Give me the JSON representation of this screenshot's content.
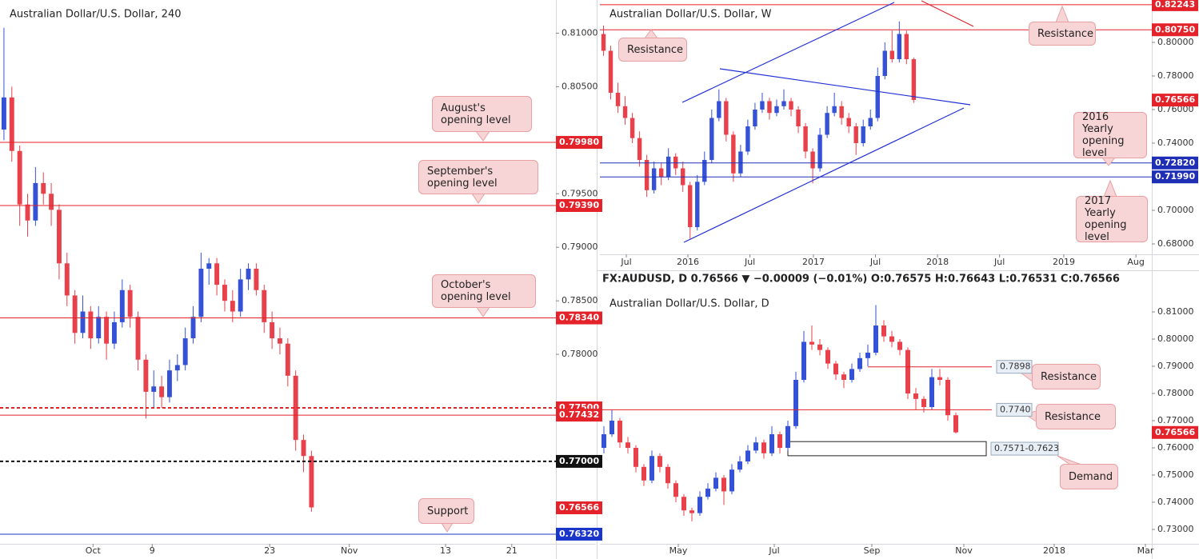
{
  "chart_data": [
    {
      "type": "candlestick",
      "title": "Australian Dollar/U.S. Dollar, 240",
      "up_color": "#3552d6",
      "down_color": "#e8414b",
      "xlim": [
        -0.5,
        70
      ],
      "ylim": [
        0.7623,
        0.8131
      ],
      "xticks": [
        {
          "value": 11.3,
          "label": "Oct"
        },
        {
          "value": 18.8,
          "label": "9"
        },
        {
          "value": 33.7,
          "label": "23"
        },
        {
          "value": 43.8,
          "label": "Nov"
        },
        {
          "value": 56,
          "label": "13"
        },
        {
          "value": 64.4,
          "label": "21"
        }
      ],
      "yticks": [
        {
          "value": 0.81,
          "label": "0.81000"
        },
        {
          "value": 0.805,
          "label": "0.80500"
        },
        {
          "value": 0.795,
          "label": "0.79500"
        },
        {
          "value": 0.79,
          "label": "0.79000"
        },
        {
          "value": 0.785,
          "label": "0.78500"
        },
        {
          "value": 0.78,
          "label": "0.78000"
        }
      ],
      "levels": [
        {
          "value": 0.7998,
          "label": "0.79980",
          "color": "#e3222a",
          "style": "solid"
        },
        {
          "value": 0.7939,
          "label": "0.79390",
          "color": "#e3222a",
          "style": "solid"
        },
        {
          "value": 0.7834,
          "label": "0.78340",
          "color": "#e3222a",
          "style": "solid"
        },
        {
          "value": 0.775,
          "label": "0.77500",
          "color": "#e3222a",
          "style": "dashed"
        },
        {
          "value": 0.77432,
          "label": "0.77432",
          "color": "#e3222a",
          "style": "solid"
        },
        {
          "value": 0.77,
          "label": "0.77000",
          "color": "#111111",
          "style": "dashed"
        },
        {
          "value": 0.76566,
          "label": "0.76566",
          "color": "#e3222a",
          "style": "none"
        },
        {
          "value": 0.7632,
          "label": "0.76320",
          "color": "#1a35c9",
          "style": "solid"
        }
      ],
      "annotations": [
        "August's opening level",
        "September's opening level",
        "October's opening level",
        "Support"
      ],
      "ohlc": [
        [
          0.801,
          0.8105,
          0.8,
          0.804
        ],
        [
          0.804,
          0.805,
          0.798,
          0.799
        ],
        [
          0.799,
          0.7995,
          0.792,
          0.794
        ],
        [
          0.794,
          0.795,
          0.791,
          0.7925
        ],
        [
          0.7925,
          0.7975,
          0.792,
          0.796
        ],
        [
          0.796,
          0.797,
          0.794,
          0.795
        ],
        [
          0.795,
          0.796,
          0.792,
          0.7935
        ],
        [
          0.7935,
          0.794,
          0.787,
          0.7885
        ],
        [
          0.7885,
          0.7895,
          0.7845,
          0.7855
        ],
        [
          0.7855,
          0.786,
          0.781,
          0.782
        ],
        [
          0.782,
          0.7855,
          0.7815,
          0.784
        ],
        [
          0.784,
          0.7845,
          0.7805,
          0.7815
        ],
        [
          0.7815,
          0.7845,
          0.781,
          0.7835
        ],
        [
          0.7835,
          0.784,
          0.7795,
          0.781
        ],
        [
          0.781,
          0.784,
          0.7805,
          0.783
        ],
        [
          0.783,
          0.787,
          0.7825,
          0.786
        ],
        [
          0.786,
          0.7865,
          0.7825,
          0.7835
        ],
        [
          0.7835,
          0.784,
          0.7785,
          0.7795
        ],
        [
          0.7795,
          0.78,
          0.774,
          0.7765
        ],
        [
          0.7765,
          0.7785,
          0.775,
          0.777
        ],
        [
          0.777,
          0.778,
          0.775,
          0.776
        ],
        [
          0.776,
          0.7795,
          0.7755,
          0.7785
        ],
        [
          0.7785,
          0.78,
          0.7775,
          0.779
        ],
        [
          0.779,
          0.7825,
          0.7785,
          0.7815
        ],
        [
          0.7815,
          0.7845,
          0.781,
          0.7835
        ],
        [
          0.7835,
          0.7895,
          0.783,
          0.788
        ],
        [
          0.788,
          0.789,
          0.7865,
          0.7885
        ],
        [
          0.7885,
          0.789,
          0.7855,
          0.7865
        ],
        [
          0.7865,
          0.787,
          0.784,
          0.785
        ],
        [
          0.785,
          0.786,
          0.783,
          0.784
        ],
        [
          0.784,
          0.788,
          0.7835,
          0.787
        ],
        [
          0.787,
          0.7885,
          0.786,
          0.788
        ],
        [
          0.788,
          0.7885,
          0.7855,
          0.786
        ],
        [
          0.786,
          0.7865,
          0.782,
          0.783
        ],
        [
          0.783,
          0.784,
          0.7805,
          0.7815
        ],
        [
          0.7815,
          0.7825,
          0.78,
          0.781
        ],
        [
          0.781,
          0.7815,
          0.777,
          0.778
        ],
        [
          0.778,
          0.7785,
          0.771,
          0.772
        ],
        [
          0.772,
          0.7725,
          0.769,
          0.7705
        ],
        [
          0.7705,
          0.771,
          0.7653,
          0.7657
        ]
      ]
    },
    {
      "type": "candlestick",
      "title": "Australian Dollar/U.S. Dollar, W",
      "up_color": "#3552d6",
      "down_color": "#e8414b",
      "xlim": [
        -0.5,
        76
      ],
      "ylim": [
        0.67381,
        0.82524
      ],
      "xticks": [
        {
          "value": 3.16,
          "label": "Jul"
        },
        {
          "value": 11.7,
          "label": "2016"
        },
        {
          "value": 20.3,
          "label": "Jul"
        },
        {
          "value": 29.1,
          "label": "2017"
        },
        {
          "value": 37.7,
          "label": "Jul"
        },
        {
          "value": 46.3,
          "label": "2018"
        },
        {
          "value": 54.9,
          "label": "Jul"
        },
        {
          "value": 63.8,
          "label": "2019"
        },
        {
          "value": 73.8,
          "label": "Aug"
        }
      ],
      "yticks": [
        {
          "value": 0.8,
          "label": "0.80000"
        },
        {
          "value": 0.78,
          "label": "0.78000"
        },
        {
          "value": 0.76,
          "label": "0.76000"
        },
        {
          "value": 0.74,
          "label": "0.74000"
        },
        {
          "value": 0.7,
          "label": "0.70000"
        },
        {
          "value": 0.68,
          "label": "0.68000"
        }
      ],
      "levels": [
        {
          "value": 0.82243,
          "label": "0.82243",
          "color": "#e3222a",
          "style": "solid"
        },
        {
          "value": 0.8075,
          "label": "0.80750",
          "color": "#e3222a",
          "style": "solid"
        },
        {
          "value": 0.76566,
          "label": "0.76566",
          "color": "#e3222a",
          "style": "none"
        },
        {
          "value": 0.7282,
          "label": "0.72820",
          "color": "#1f2fb5",
          "style": "solid"
        },
        {
          "value": 0.7199,
          "label": "0.71990",
          "color": "#1f2fb5",
          "style": "solid"
        }
      ],
      "annotations": [
        "Resistance",
        "Resistance",
        "2016 Yearly opening level",
        "2017 Yearly opening level"
      ],
      "ohlc": [
        [
          0.805,
          0.81,
          0.792,
          0.795
        ],
        [
          0.795,
          0.798,
          0.766,
          0.77
        ],
        [
          0.77,
          0.776,
          0.758,
          0.762
        ],
        [
          0.762,
          0.768,
          0.751,
          0.755
        ],
        [
          0.755,
          0.758,
          0.74,
          0.743
        ],
        [
          0.743,
          0.747,
          0.726,
          0.73
        ],
        [
          0.73,
          0.733,
          0.708,
          0.712
        ],
        [
          0.712,
          0.729,
          0.71,
          0.725
        ],
        [
          0.725,
          0.728,
          0.715,
          0.72
        ],
        [
          0.72,
          0.737,
          0.718,
          0.732
        ],
        [
          0.732,
          0.734,
          0.721,
          0.725
        ],
        [
          0.725,
          0.729,
          0.711,
          0.715
        ],
        [
          0.715,
          0.717,
          0.683,
          0.69
        ],
        [
          0.69,
          0.721,
          0.688,
          0.717
        ],
        [
          0.717,
          0.735,
          0.715,
          0.73
        ],
        [
          0.73,
          0.76,
          0.728,
          0.755
        ],
        [
          0.755,
          0.772,
          0.753,
          0.765
        ],
        [
          0.765,
          0.767,
          0.741,
          0.745
        ],
        [
          0.745,
          0.747,
          0.717,
          0.722
        ],
        [
          0.722,
          0.739,
          0.72,
          0.735
        ],
        [
          0.735,
          0.754,
          0.733,
          0.75
        ],
        [
          0.75,
          0.764,
          0.748,
          0.76
        ],
        [
          0.76,
          0.77,
          0.758,
          0.765
        ],
        [
          0.765,
          0.767,
          0.754,
          0.758
        ],
        [
          0.758,
          0.766,
          0.756,
          0.762
        ],
        [
          0.762,
          0.772,
          0.76,
          0.765
        ],
        [
          0.765,
          0.767,
          0.756,
          0.76
        ],
        [
          0.76,
          0.762,
          0.746,
          0.75
        ],
        [
          0.75,
          0.752,
          0.731,
          0.735
        ],
        [
          0.735,
          0.737,
          0.716,
          0.725
        ],
        [
          0.725,
          0.749,
          0.723,
          0.745
        ],
        [
          0.745,
          0.762,
          0.743,
          0.758
        ],
        [
          0.758,
          0.77,
          0.756,
          0.762
        ],
        [
          0.762,
          0.765,
          0.751,
          0.755
        ],
        [
          0.755,
          0.758,
          0.746,
          0.75
        ],
        [
          0.75,
          0.752,
          0.733,
          0.74
        ],
        [
          0.74,
          0.754,
          0.738,
          0.75
        ],
        [
          0.75,
          0.76,
          0.748,
          0.755
        ],
        [
          0.755,
          0.785,
          0.753,
          0.78
        ],
        [
          0.78,
          0.8,
          0.778,
          0.795
        ],
        [
          0.795,
          0.807,
          0.788,
          0.79
        ],
        [
          0.79,
          0.8125,
          0.788,
          0.805
        ],
        [
          0.805,
          0.807,
          0.787,
          0.79
        ],
        [
          0.79,
          0.791,
          0.764,
          0.7657
        ]
      ]
    },
    {
      "type": "candlestick",
      "title": "Australian Dollar/U.S. Dollar, D",
      "header": "FX:AUDUSD, D  0.76566 ▼ −0.00009 (−0.01%)  O:0.76575  H:0.76643  L:0.76531  C:0.76566",
      "up_color": "#3552d6",
      "down_color": "#e8414b",
      "xlim": [
        -0.5,
        68.5
      ],
      "ylim": [
        0.72471,
        0.81824
      ],
      "xticks": [
        {
          "value": 9.3,
          "label": "May"
        },
        {
          "value": 21.3,
          "label": "Jul"
        },
        {
          "value": 33.5,
          "label": "Sep"
        },
        {
          "value": 45,
          "label": "Nov"
        },
        {
          "value": 56.3,
          "label": "2018"
        },
        {
          "value": 67.7,
          "label": "Mar"
        }
      ],
      "yticks": [
        {
          "value": 0.81,
          "label": "0.81000"
        },
        {
          "value": 0.8,
          "label": "0.80000"
        },
        {
          "value": 0.79,
          "label": "0.79000"
        },
        {
          "value": 0.78,
          "label": "0.78000"
        },
        {
          "value": 0.77,
          "label": "0.77000"
        },
        {
          "value": 0.76,
          "label": "0.76000"
        },
        {
          "value": 0.75,
          "label": "0.75000"
        },
        {
          "value": 0.74,
          "label": "0.74000"
        },
        {
          "value": 0.73,
          "label": "0.73000"
        }
      ],
      "levels": [
        {
          "value": 0.7898,
          "label": "0.7898",
          "color": "#e3222a",
          "style": "solid",
          "from": 33,
          "to": 48.5
        },
        {
          "value": 0.774,
          "label": "0.7740",
          "color": "#e3222a",
          "style": "solid",
          "from": -0.5,
          "to": 48.5
        },
        {
          "value": 0.76566,
          "label": "0.76566",
          "color": "#e3222a",
          "style": "none"
        }
      ],
      "zones": [
        {
          "low": 0.7571,
          "high": 0.7623,
          "label": "0.7571-0.7623",
          "from": 23,
          "to": 47.8
        }
      ],
      "annotations": [
        "Resistance",
        "Resistance",
        "Demand"
      ],
      "ohlc": [
        [
          0.76,
          0.768,
          0.758,
          0.765
        ],
        [
          0.765,
          0.774,
          0.764,
          0.77
        ],
        [
          0.77,
          0.771,
          0.76,
          0.762
        ],
        [
          0.762,
          0.764,
          0.758,
          0.76
        ],
        [
          0.76,
          0.761,
          0.751,
          0.753
        ],
        [
          0.753,
          0.754,
          0.746,
          0.748
        ],
        [
          0.748,
          0.759,
          0.747,
          0.757
        ],
        [
          0.757,
          0.758,
          0.751,
          0.753
        ],
        [
          0.753,
          0.754,
          0.745,
          0.747
        ],
        [
          0.747,
          0.748,
          0.74,
          0.742
        ],
        [
          0.742,
          0.743,
          0.735,
          0.737
        ],
        [
          0.737,
          0.738,
          0.733,
          0.736
        ],
        [
          0.736,
          0.744,
          0.735,
          0.742
        ],
        [
          0.742,
          0.747,
          0.741,
          0.745
        ],
        [
          0.745,
          0.751,
          0.744,
          0.749
        ],
        [
          0.749,
          0.75,
          0.739,
          0.744
        ],
        [
          0.744,
          0.754,
          0.743,
          0.752
        ],
        [
          0.752,
          0.757,
          0.751,
          0.755
        ],
        [
          0.755,
          0.761,
          0.754,
          0.759
        ],
        [
          0.759,
          0.764,
          0.758,
          0.762
        ],
        [
          0.762,
          0.763,
          0.756,
          0.758
        ],
        [
          0.758,
          0.768,
          0.757,
          0.765
        ],
        [
          0.765,
          0.766,
          0.758,
          0.76
        ],
        [
          0.76,
          0.77,
          0.759,
          0.768
        ],
        [
          0.768,
          0.788,
          0.767,
          0.785
        ],
        [
          0.785,
          0.803,
          0.784,
          0.799
        ],
        [
          0.799,
          0.805,
          0.796,
          0.798
        ],
        [
          0.798,
          0.8,
          0.794,
          0.796
        ],
        [
          0.796,
          0.797,
          0.789,
          0.791
        ],
        [
          0.791,
          0.792,
          0.785,
          0.787
        ],
        [
          0.787,
          0.788,
          0.782,
          0.785
        ],
        [
          0.785,
          0.791,
          0.784,
          0.789
        ],
        [
          0.789,
          0.795,
          0.788,
          0.793
        ],
        [
          0.793,
          0.798,
          0.79,
          0.795
        ],
        [
          0.795,
          0.8125,
          0.794,
          0.805
        ],
        [
          0.805,
          0.807,
          0.799,
          0.801
        ],
        [
          0.801,
          0.803,
          0.797,
          0.799
        ],
        [
          0.799,
          0.8,
          0.794,
          0.796
        ],
        [
          0.796,
          0.797,
          0.778,
          0.78
        ],
        [
          0.78,
          0.782,
          0.774,
          0.778
        ],
        [
          0.778,
          0.779,
          0.773,
          0.775
        ],
        [
          0.775,
          0.789,
          0.774,
          0.786
        ],
        [
          0.786,
          0.789,
          0.783,
          0.785
        ],
        [
          0.785,
          0.786,
          0.77,
          0.772
        ],
        [
          0.772,
          0.773,
          0.7653,
          0.7657
        ]
      ]
    }
  ]
}
